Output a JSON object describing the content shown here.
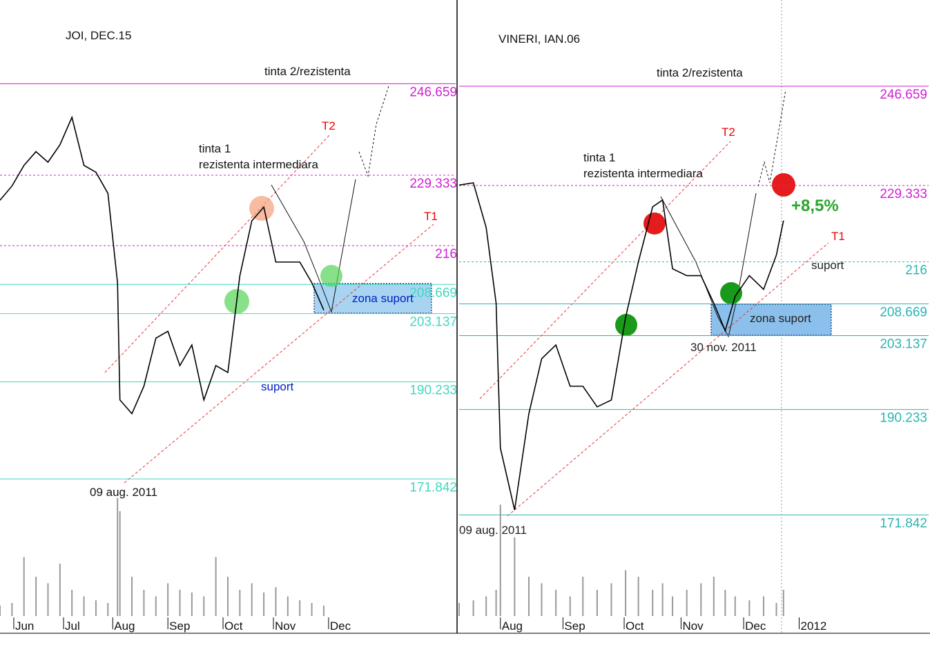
{
  "chart_data": [
    {
      "type": "line",
      "title": "JOI, DEC.15",
      "x": [
        0,
        1,
        2,
        3,
        4,
        5,
        6,
        7,
        8,
        9,
        9.8,
        10,
        11,
        12,
        13,
        14,
        15,
        16,
        17,
        18,
        19,
        20,
        21,
        22,
        23,
        24,
        25,
        26,
        27
      ],
      "series": [
        {
          "color": "#000000",
          "values": [
            224.6,
            227.3,
            231.2,
            233.8,
            231.8,
            235.1,
            240.3,
            231.2,
            229.9,
            225.9,
            209,
            186.8,
            184.2,
            189.4,
            198.5,
            199.8,
            193.3,
            197.2,
            186.8,
            193.3,
            192,
            210.3,
            220.7,
            223.3,
            212.9,
            212.9,
            212.9,
            209,
            203.8
          ]
        }
      ],
      "volume": {
        "color": "#999999",
        "values": [
          8,
          10,
          45,
          30,
          25,
          40,
          20,
          15,
          12,
          10,
          90,
          80,
          30,
          20,
          15,
          25,
          20,
          18,
          15,
          45,
          30,
          20,
          25,
          18,
          22,
          15,
          12,
          10,
          8
        ]
      },
      "vlim": [
        0,
        100
      ],
      "xlim": [
        0,
        38
      ],
      "ylim": [
        160,
        262.5
      ],
      "xticks": [
        {
          "value": 1.15,
          "label": "Jun"
        },
        {
          "value": 5.3,
          "label": "Jul"
        },
        {
          "value": 9.4,
          "label": "Aug"
        },
        {
          "value": 14,
          "label": "Sep"
        },
        {
          "value": 18.6,
          "label": "Oct"
        },
        {
          "value": 22.8,
          "label": "Nov"
        },
        {
          "value": 27.4,
          "label": "Dec"
        }
      ],
      "yticks": [
        246.659,
        229.333,
        216,
        208.669,
        203.137,
        190.233,
        171.842
      ],
      "ytick_colors": [
        "#d21fd2",
        "#d21fd2",
        "#d21fd2",
        "#3fd9c0",
        "#3fd9c0",
        "#3fd9c0",
        "#3fd9c0"
      ],
      "ytick_dashed": [
        false,
        true,
        true,
        false,
        false,
        false,
        false
      ],
      "annotations": [
        "tinta 2/rezistenta",
        "T2",
        "tinta 1",
        "rezistenta intermediara",
        "T1",
        "zona suport",
        "suport",
        "09 aug. 2011"
      ]
    },
    {
      "type": "line",
      "title": "VINERI, IAN.06",
      "x": [
        0,
        1,
        1.9,
        2.6,
        2.9,
        3.9,
        4.9,
        5.8,
        6.8,
        7.8,
        8.7,
        9.7,
        10.7,
        11.7,
        12.6,
        13.6,
        14.3,
        15,
        16,
        17,
        17.9,
        18.7,
        19.4,
        20.4,
        21.4,
        22.3,
        22.8
      ],
      "series": [
        {
          "color": "#000000",
          "values": [
            229.4,
            229.8,
            222,
            208.8,
            183.5,
            172.7,
            189.5,
            199.1,
            201.5,
            194.3,
            194.3,
            190.7,
            191.9,
            206.3,
            216,
            225.6,
            226.8,
            214.8,
            213.6,
            213.6,
            208.8,
            204,
            210,
            213.6,
            211.2,
            217.2,
            223.2
          ]
        }
      ],
      "volume": {
        "color": "#999999",
        "values": [
          10,
          12,
          15,
          20,
          85,
          60,
          30,
          25,
          20,
          15,
          30,
          20,
          25,
          35,
          30,
          20,
          25,
          15,
          20,
          25,
          30,
          20,
          15,
          12,
          15,
          10,
          20
        ]
      },
      "vlim": [
        0,
        100
      ],
      "xlim": [
        0,
        33
      ],
      "ylim": [
        167.2,
        261.7
      ],
      "xticks": [
        {
          "value": 2.9,
          "label": "Aug"
        },
        {
          "value": 7.3,
          "label": "Sep"
        },
        {
          "value": 11.6,
          "label": "Oct"
        },
        {
          "value": 15.6,
          "label": "Nov"
        },
        {
          "value": 20,
          "label": "Dec"
        },
        {
          "value": 23.9,
          "label": "2012"
        }
      ],
      "yticks": [
        246.659,
        229.333,
        216,
        208.669,
        203.137,
        190.233,
        171.842
      ],
      "ytick_colors": [
        "#d21fd2",
        "#d21fd2",
        "#2db3b3",
        "#2db3b3",
        "#2db3b3",
        "#2db3b3",
        "#2db3b3"
      ],
      "ytick_dashed": [
        false,
        true,
        true,
        false,
        false,
        false,
        false
      ],
      "annotations": [
        "tinta 2/rezistenta",
        "T2",
        "tinta 1",
        "rezistenta intermediara",
        "+8,5%",
        "T1",
        "suport",
        "zona suport",
        "30 nov. 2011",
        "09 aug. 2011"
      ]
    }
  ]
}
